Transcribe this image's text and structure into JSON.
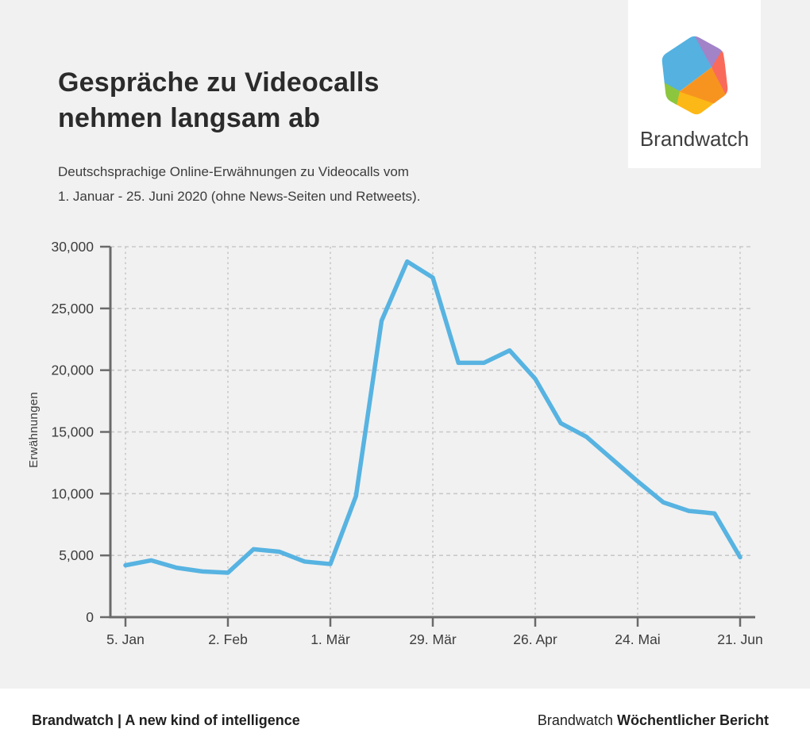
{
  "header": {
    "title_lines": [
      "Gespräche zu Videocalls",
      "nehmen langsam ab"
    ],
    "subtitle_lines": [
      "Deutschsprachige Online-Erwähnungen zu Videocalls vom",
      "1. Januar - 25. Juni 2020 (ohne News-Seiten und Retweets)."
    ]
  },
  "logo": {
    "brand": "Brandwatch",
    "hex_colors": {
      "blue": "#54b1e0",
      "purple": "#a283c8",
      "red": "#f96a5b",
      "orange": "#f79420",
      "yellow": "#fcb816",
      "green": "#8cc63f"
    }
  },
  "chart_data": {
    "type": "line",
    "title": "Gespräche zu Videocalls nehmen langsam ab",
    "xlabel": "",
    "ylabel": "Erwähnungen",
    "x": [
      "5. Jan",
      "12. Jan",
      "19. Jan",
      "26. Jan",
      "2. Feb",
      "9. Feb",
      "16. Feb",
      "23. Feb",
      "1. Mär",
      "8. Mär",
      "15. Mär",
      "22. Mär",
      "29. Mär",
      "5. Apr",
      "12. Apr",
      "19. Apr",
      "26. Apr",
      "3. Mai",
      "10. Mai",
      "17. Mai",
      "24. Mai",
      "31. Mai",
      "7. Jun",
      "14. Jun",
      "21. Jun"
    ],
    "series": [
      {
        "name": "Erwähnungen",
        "values": [
          4200,
          4600,
          4000,
          3700,
          3600,
          5500,
          5300,
          4500,
          4300,
          9800,
          24000,
          28800,
          27500,
          20600,
          20600,
          21600,
          19300,
          15700,
          14600,
          12800,
          11000,
          9300,
          8600,
          8400,
          4850
        ]
      }
    ],
    "ylim": [
      0,
      30000
    ],
    "yticks": [
      0,
      5000,
      10000,
      15000,
      20000,
      25000,
      30000
    ],
    "ytick_labels": [
      "0",
      "5,000",
      "10,000",
      "15,000",
      "20,000",
      "25,000",
      "30,000"
    ],
    "xtick_indices": [
      0,
      4,
      8,
      12,
      16,
      20,
      24
    ],
    "xtick_labels": [
      "5. Jan",
      "2. Feb",
      "1. Mär",
      "29. Mär",
      "26. Apr",
      "24. Mai",
      "21. Jun"
    ],
    "grid": true,
    "legend": false,
    "line_color": "#57b3e1"
  },
  "footer": {
    "left": "Brandwatch | A new kind of intelligence",
    "right_regular": "Brandwatch",
    "right_bold": "Wöchentlicher Bericht"
  },
  "colors": {
    "background": "#f1f1f1",
    "card": "#ffffff",
    "accent_line": "#57b3e1"
  }
}
